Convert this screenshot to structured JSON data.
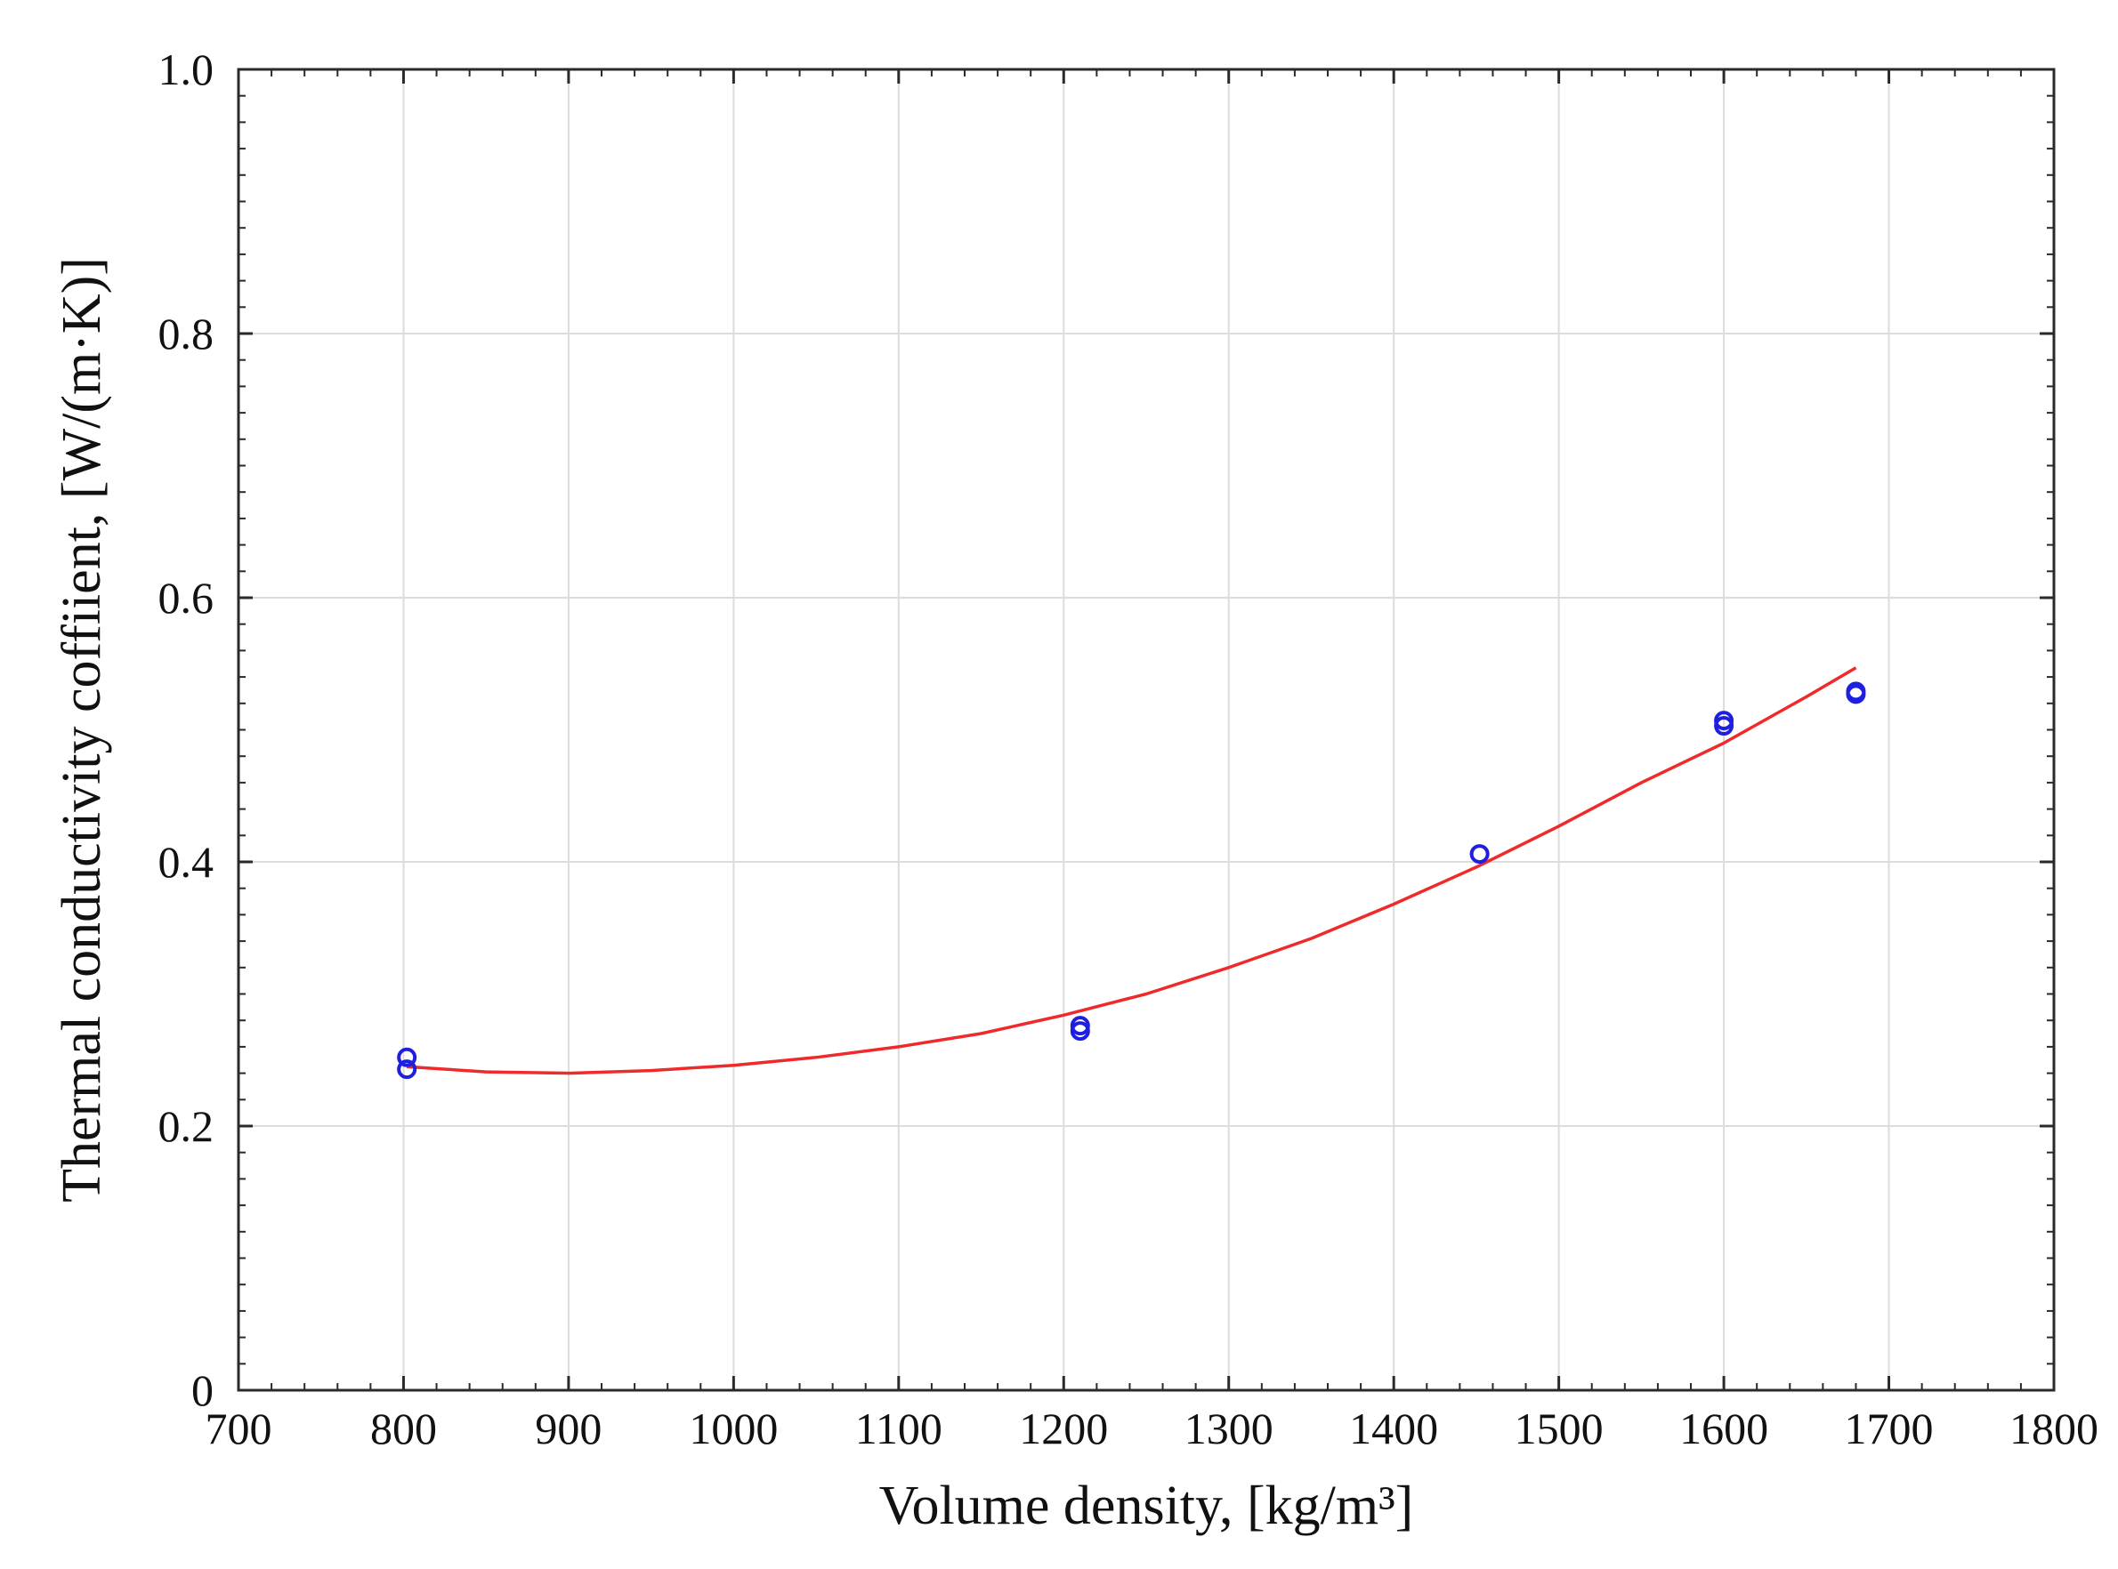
{
  "chart_data": {
    "type": "scatter",
    "title": "",
    "xlabel": "Volume density, [kg/m³]",
    "ylabel": "Thermal conductivity coffiient, [W/(m·K)]",
    "xlim": [
      700,
      1800
    ],
    "ylim": [
      0,
      1.0
    ],
    "xticks": [
      700,
      800,
      900,
      1000,
      1100,
      1200,
      1300,
      1400,
      1500,
      1600,
      1700,
      1800
    ],
    "xtick_labels": [
      "700",
      "800",
      "900",
      "1000",
      "1100",
      "1200",
      "1300",
      "1400",
      "1500",
      "1600",
      "1700",
      "1800"
    ],
    "yticks": [
      0,
      0.2,
      0.4,
      0.6,
      0.8,
      1.0
    ],
    "ytick_labels": [
      "0",
      "0.2",
      "0.4",
      "0.6",
      "0.8",
      "1.0"
    ],
    "grid": true,
    "legend": "none",
    "series": [
      {
        "type": "scatter",
        "marker": "open-circle",
        "color": "#1f1fe0",
        "x": [
          802,
          802,
          1210,
          1210,
          1452,
          1600,
          1600,
          1680,
          1680
        ],
        "y": [
          0.252,
          0.243,
          0.276,
          0.272,
          0.406,
          0.507,
          0.503,
          0.529,
          0.527
        ]
      },
      {
        "type": "line",
        "color": "#ee2a2a",
        "x": [
          802,
          850,
          900,
          950,
          1000,
          1050,
          1100,
          1150,
          1200,
          1250,
          1300,
          1350,
          1400,
          1450,
          1500,
          1550,
          1600,
          1650,
          1680
        ],
        "y": [
          0.245,
          0.241,
          0.24,
          0.242,
          0.246,
          0.252,
          0.26,
          0.27,
          0.284,
          0.3,
          0.32,
          0.342,
          0.368,
          0.396,
          0.427,
          0.46,
          0.49,
          0.525,
          0.547
        ]
      }
    ]
  }
}
